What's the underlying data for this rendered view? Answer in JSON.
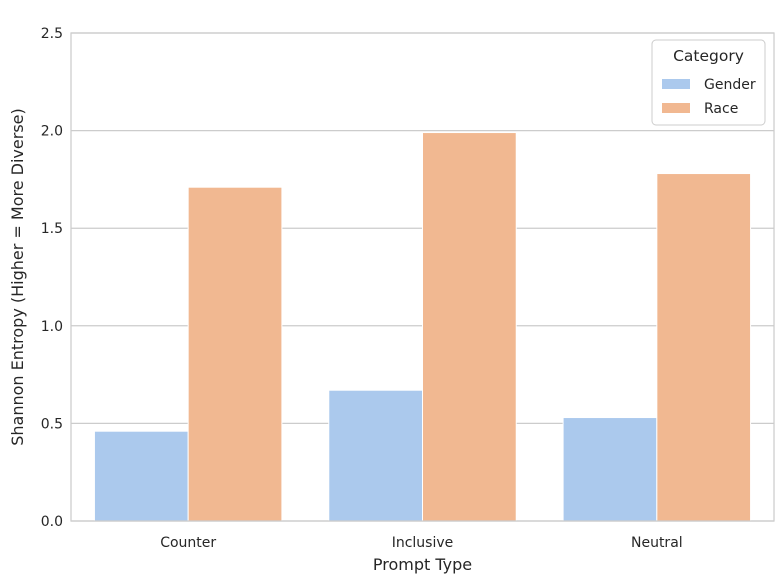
{
  "chart_data": {
    "type": "bar",
    "categories": [
      "Counter",
      "Inclusive",
      "Neutral"
    ],
    "series": [
      {
        "name": "Gender",
        "values": [
          0.46,
          0.67,
          0.53
        ],
        "color": "#abc9ed"
      },
      {
        "name": "Race",
        "values": [
          1.71,
          1.99,
          1.78
        ],
        "color": "#f1b891"
      }
    ],
    "title": "",
    "xlabel": "Prompt Type",
    "ylabel": "Shannon Entropy (Higher = More Diverse)",
    "ylim": [
      0,
      2.5
    ],
    "yticks": [
      0.0,
      0.5,
      1.0,
      1.5,
      2.0,
      2.5
    ],
    "ytick_labels": [
      "0.0",
      "0.5",
      "1.0",
      "1.5",
      "2.0",
      "2.5"
    ],
    "grid": "horizontal",
    "legend": {
      "title": "Category",
      "position": "upper-right"
    }
  },
  "colors": {
    "grid": "#cccccc",
    "spine": "#cccccc",
    "text": "#262626",
    "background": "#ffffff"
  }
}
